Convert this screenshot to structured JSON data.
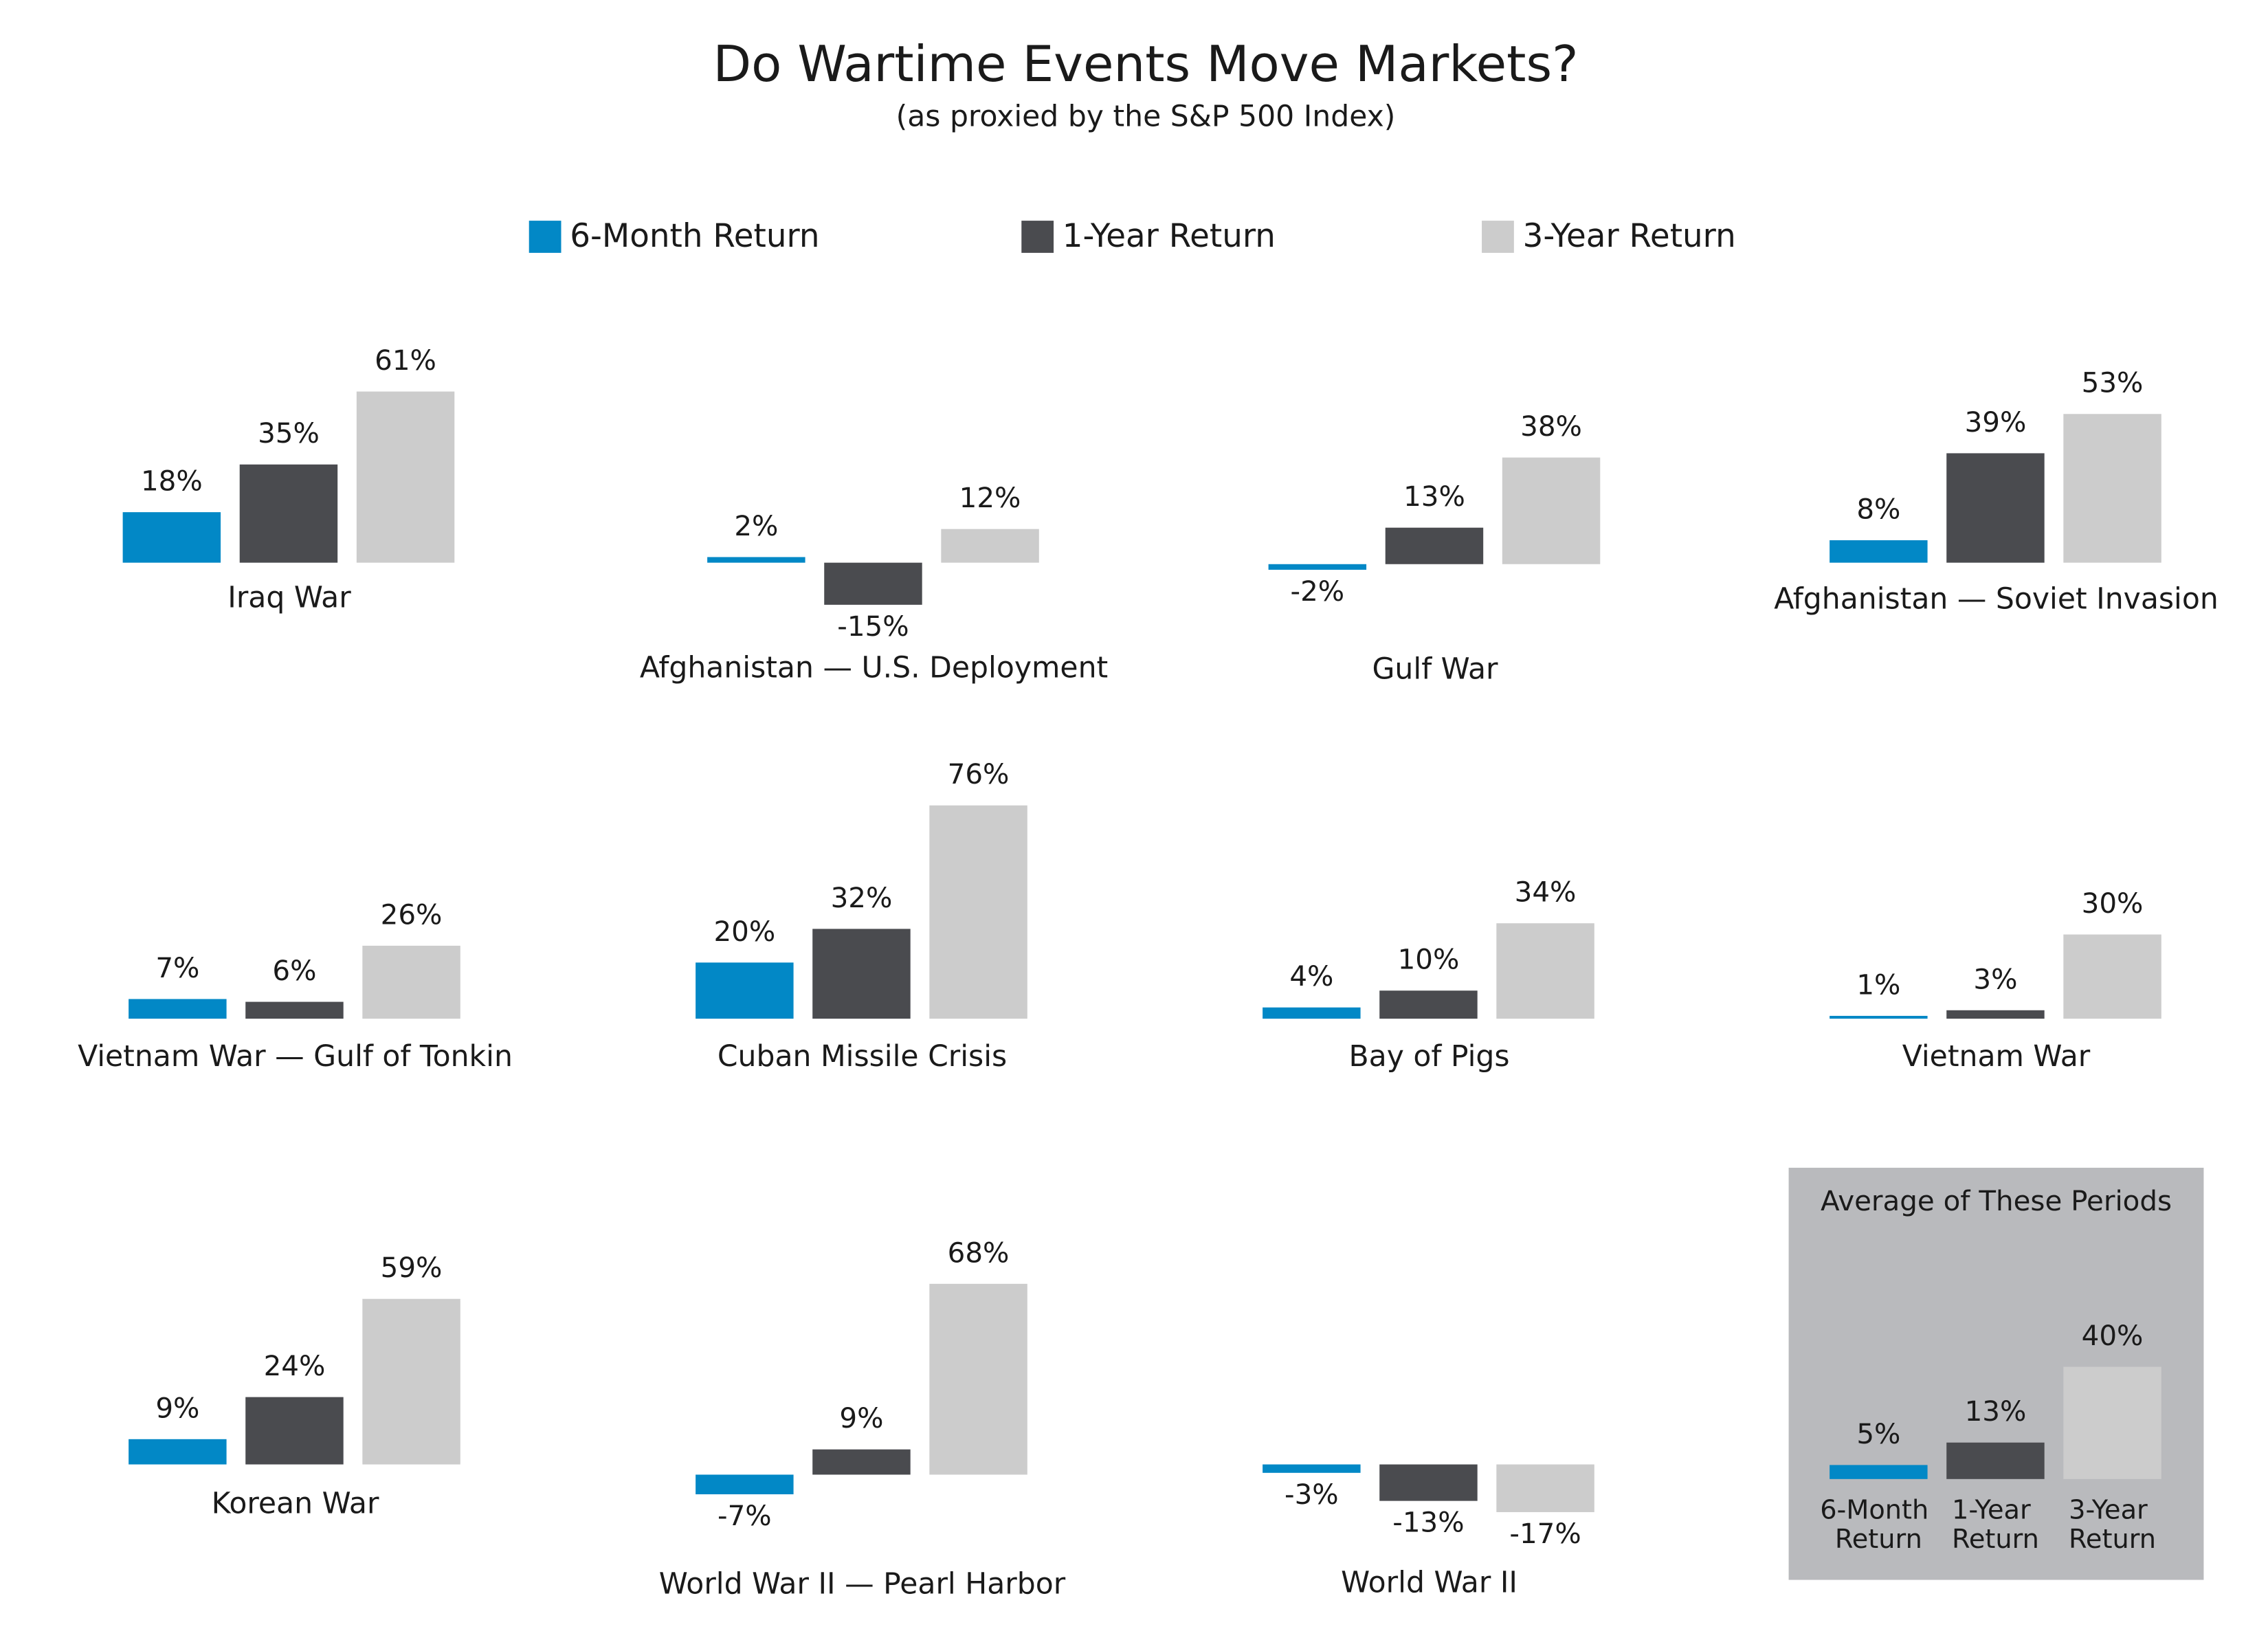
{
  "chart_data": {
    "type": "bar",
    "title": "Do Wartime Events Move Markets?",
    "subtitle": "(as proxied by the S&P 500 Index)",
    "categories": [
      "Iraq War",
      "Afghanistan — U.S. Deployment",
      "Gulf War",
      "Afghanistan — Soviet Invasion",
      "Vietnam War — Gulf of Tonkin",
      "Cuban Missile Crisis",
      "Bay of Pigs",
      "Vietnam War",
      "Korean War",
      "World War II — Pearl Harbor",
      "World War II"
    ],
    "series": [
      {
        "name": "6-Month Return",
        "color": "#0288c6",
        "values": [
          18,
          2,
          -2,
          8,
          7,
          20,
          4,
          1,
          9,
          -7,
          -3
        ],
        "value_labels": [
          "18%",
          "2%",
          "-2%",
          "8%",
          "7%",
          "20%",
          "4%",
          "1%",
          "9%",
          "-7%",
          "-3%"
        ]
      },
      {
        "name": "1-Year Return",
        "color": "#4a4b4f",
        "values": [
          35,
          -15,
          13,
          39,
          6,
          32,
          10,
          3,
          24,
          9,
          -13
        ],
        "value_labels": [
          "35%",
          "-15%",
          "13%",
          "39%",
          "6%",
          "32%",
          "10%",
          "3%",
          "24%",
          "9%",
          "-13%"
        ]
      },
      {
        "name": "3-Year Return",
        "color": "#cccccc",
        "values": [
          61,
          12,
          38,
          53,
          26,
          76,
          34,
          30,
          59,
          68,
          -17
        ],
        "value_labels": [
          "61%",
          "12%",
          "38%",
          "53%",
          "26%",
          "76%",
          "34%",
          "30%",
          "59%",
          "68%",
          "-17%"
        ]
      }
    ],
    "average": {
      "title": "Average of These Periods",
      "categories": [
        "6-Month Return",
        "1-Year Return",
        "3-Year Return"
      ],
      "values": [
        5,
        13,
        40
      ],
      "value_labels": [
        "5%",
        "13%",
        "40%"
      ]
    }
  }
}
